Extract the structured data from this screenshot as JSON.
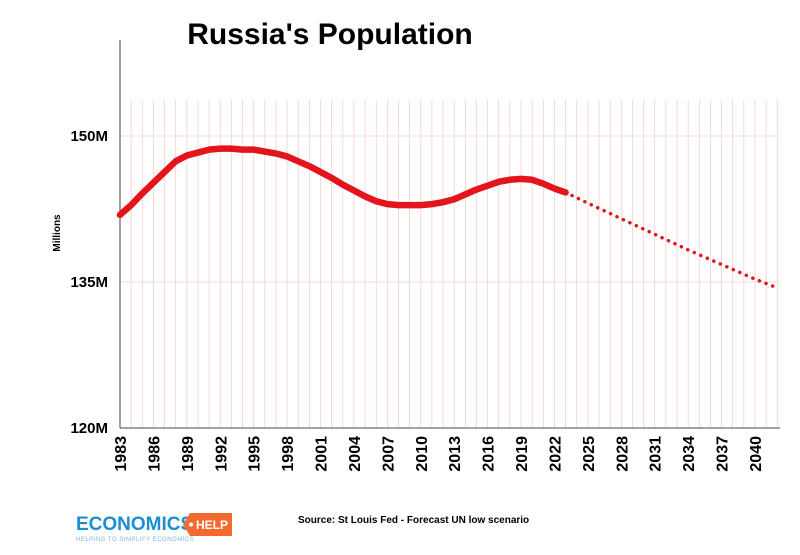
{
  "chart_data": {
    "type": "line",
    "title": "Russia's Population",
    "ylabel": "Millions",
    "xlabel": "",
    "ylim": [
      120,
      160
    ],
    "xlim": [
      1983,
      2042
    ],
    "y_ticks": [
      {
        "value": 120,
        "label": "120M"
      },
      {
        "value": 135,
        "label": "135M"
      },
      {
        "value": 150,
        "label": "150M"
      }
    ],
    "x_ticks": [
      "1983",
      "1986",
      "1989",
      "1992",
      "1995",
      "1998",
      "2001",
      "2004",
      "2007",
      "2010",
      "2013",
      "2016",
      "2019",
      "2022",
      "2025",
      "2028",
      "2031",
      "2034",
      "2037",
      "2040"
    ],
    "grid": "vertical",
    "series": [
      {
        "style": "solid",
        "color": "#e3141b",
        "x": [
          1983,
          1984,
          1985,
          1986,
          1987,
          1988,
          1989,
          1990,
          1991,
          1992,
          1993,
          1994,
          1995,
          1996,
          1997,
          1998,
          1999,
          2000,
          2001,
          2002,
          2003,
          2004,
          2005,
          2006,
          2007,
          2008,
          2009,
          2010,
          2011,
          2012,
          2013,
          2014,
          2015,
          2016,
          2017,
          2018,
          2019,
          2020,
          2021,
          2022,
          2023
        ],
        "y": [
          141.9,
          142.9,
          144.1,
          145.2,
          146.3,
          147.4,
          148.0,
          148.3,
          148.6,
          148.7,
          148.7,
          148.6,
          148.6,
          148.4,
          148.2,
          147.9,
          147.4,
          146.9,
          146.3,
          145.7,
          145.0,
          144.4,
          143.8,
          143.3,
          143.0,
          142.9,
          142.9,
          142.9,
          143.0,
          143.2,
          143.5,
          144.0,
          144.5,
          144.9,
          145.3,
          145.5,
          145.6,
          145.5,
          145.1,
          144.6,
          144.2
        ]
      },
      {
        "style": "dotted",
        "color": "#e3141b",
        "x": [
          2023,
          2025,
          2028,
          2031,
          2034,
          2037,
          2040,
          2042
        ],
        "y": [
          144.2,
          143.1,
          141.5,
          139.9,
          138.3,
          136.8,
          135.3,
          134.4
        ]
      }
    ]
  },
  "source": "Source: St Louis Fed - Forecast UN low scenario",
  "logo": {
    "main": "ECONOMICS",
    "help": "HELP",
    "tagline": "HELPING TO SIMPLIFY ECONOMICS"
  },
  "colors": {
    "line": "#e3141b",
    "logo_blue": "#1b8fd2",
    "grid": "#f3c9c9"
  }
}
